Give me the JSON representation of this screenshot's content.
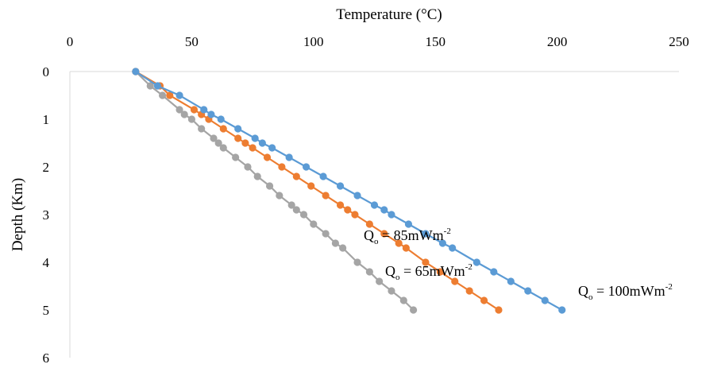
{
  "chart_data": {
    "type": "scatter",
    "x_axis_title": "Temperature (°C)",
    "y_axis_title": "Depth (Km)",
    "x_axis_position": "top",
    "y_axis_inverted": true,
    "xlim": [
      0,
      250
    ],
    "ylim": [
      0,
      6
    ],
    "x_ticks": [
      0,
      50,
      100,
      150,
      200,
      250
    ],
    "y_ticks": [
      0,
      1,
      2,
      3,
      4,
      5,
      6
    ],
    "x_tick_labels": [
      "0",
      "50",
      "100",
      "150",
      "200",
      "250"
    ],
    "y_tick_labels": [
      "0",
      "1",
      "2",
      "3",
      "4",
      "5",
      "6"
    ],
    "grid": false,
    "legend": "none",
    "series": [
      {
        "name": "Qo = 100mWm-2",
        "label_prefix": "Q",
        "label_sub": "o",
        "label_main": " = 100mWm",
        "label_sup": "-2",
        "color": "#5B9BD5",
        "points": [
          [
            27,
            0
          ],
          [
            36,
            0.3
          ],
          [
            45,
            0.5
          ],
          [
            55,
            0.8
          ],
          [
            58,
            0.9
          ],
          [
            62,
            1.0
          ],
          [
            69,
            1.2
          ],
          [
            76,
            1.4
          ],
          [
            79,
            1.5
          ],
          [
            83,
            1.6
          ],
          [
            90,
            1.8
          ],
          [
            97,
            2.0
          ],
          [
            104,
            2.2
          ],
          [
            111,
            2.4
          ],
          [
            118,
            2.6
          ],
          [
            125,
            2.8
          ],
          [
            129,
            2.9
          ],
          [
            132,
            3.0
          ],
          [
            139,
            3.2
          ],
          [
            146,
            3.4
          ],
          [
            153,
            3.6
          ],
          [
            157,
            3.7
          ],
          [
            167,
            4.0
          ],
          [
            174,
            4.2
          ],
          [
            181,
            4.4
          ],
          [
            188,
            4.6
          ],
          [
            195,
            4.8
          ],
          [
            202,
            5.0
          ]
        ]
      },
      {
        "name": "Qo = 85mWm-2",
        "label_prefix": "Q",
        "label_sub": "o",
        "label_main": " = 85mWm",
        "label_sup": "-2",
        "color": "#ED7D31",
        "points": [
          [
            27,
            0
          ],
          [
            37,
            0.3
          ],
          [
            41,
            0.5
          ],
          [
            51,
            0.8
          ],
          [
            54,
            0.9
          ],
          [
            57,
            1.0
          ],
          [
            63,
            1.2
          ],
          [
            69,
            1.4
          ],
          [
            72,
            1.5
          ],
          [
            75,
            1.6
          ],
          [
            81,
            1.8
          ],
          [
            87,
            2.0
          ],
          [
            93,
            2.2
          ],
          [
            99,
            2.4
          ],
          [
            105,
            2.6
          ],
          [
            111,
            2.8
          ],
          [
            114,
            2.9
          ],
          [
            117,
            3.0
          ],
          [
            123,
            3.2
          ],
          [
            129,
            3.4
          ],
          [
            135,
            3.6
          ],
          [
            138,
            3.7
          ],
          [
            146,
            4.0
          ],
          [
            152,
            4.2
          ],
          [
            158,
            4.4
          ],
          [
            164,
            4.6
          ],
          [
            170,
            4.8
          ],
          [
            176,
            5.0
          ]
        ]
      },
      {
        "name": "Qo = 65mWm-2",
        "label_prefix": "Q",
        "label_sub": "o",
        "label_main": " = 65mWm",
        "label_sup": "-2",
        "color": "#A5A5A5",
        "points": [
          [
            27,
            0
          ],
          [
            33,
            0.3
          ],
          [
            38,
            0.5
          ],
          [
            45,
            0.8
          ],
          [
            47,
            0.9
          ],
          [
            50,
            1.0
          ],
          [
            54,
            1.2
          ],
          [
            59,
            1.4
          ],
          [
            61,
            1.5
          ],
          [
            63,
            1.6
          ],
          [
            68,
            1.8
          ],
          [
            73,
            2.0
          ],
          [
            77,
            2.2
          ],
          [
            82,
            2.4
          ],
          [
            86,
            2.6
          ],
          [
            91,
            2.8
          ],
          [
            93,
            2.9
          ],
          [
            96,
            3.0
          ],
          [
            100,
            3.2
          ],
          [
            105,
            3.4
          ],
          [
            109,
            3.6
          ],
          [
            112,
            3.7
          ],
          [
            118,
            4.0
          ],
          [
            123,
            4.2
          ],
          [
            127,
            4.4
          ],
          [
            132,
            4.6
          ],
          [
            137,
            4.8
          ],
          [
            141,
            5.0
          ]
        ]
      }
    ]
  }
}
